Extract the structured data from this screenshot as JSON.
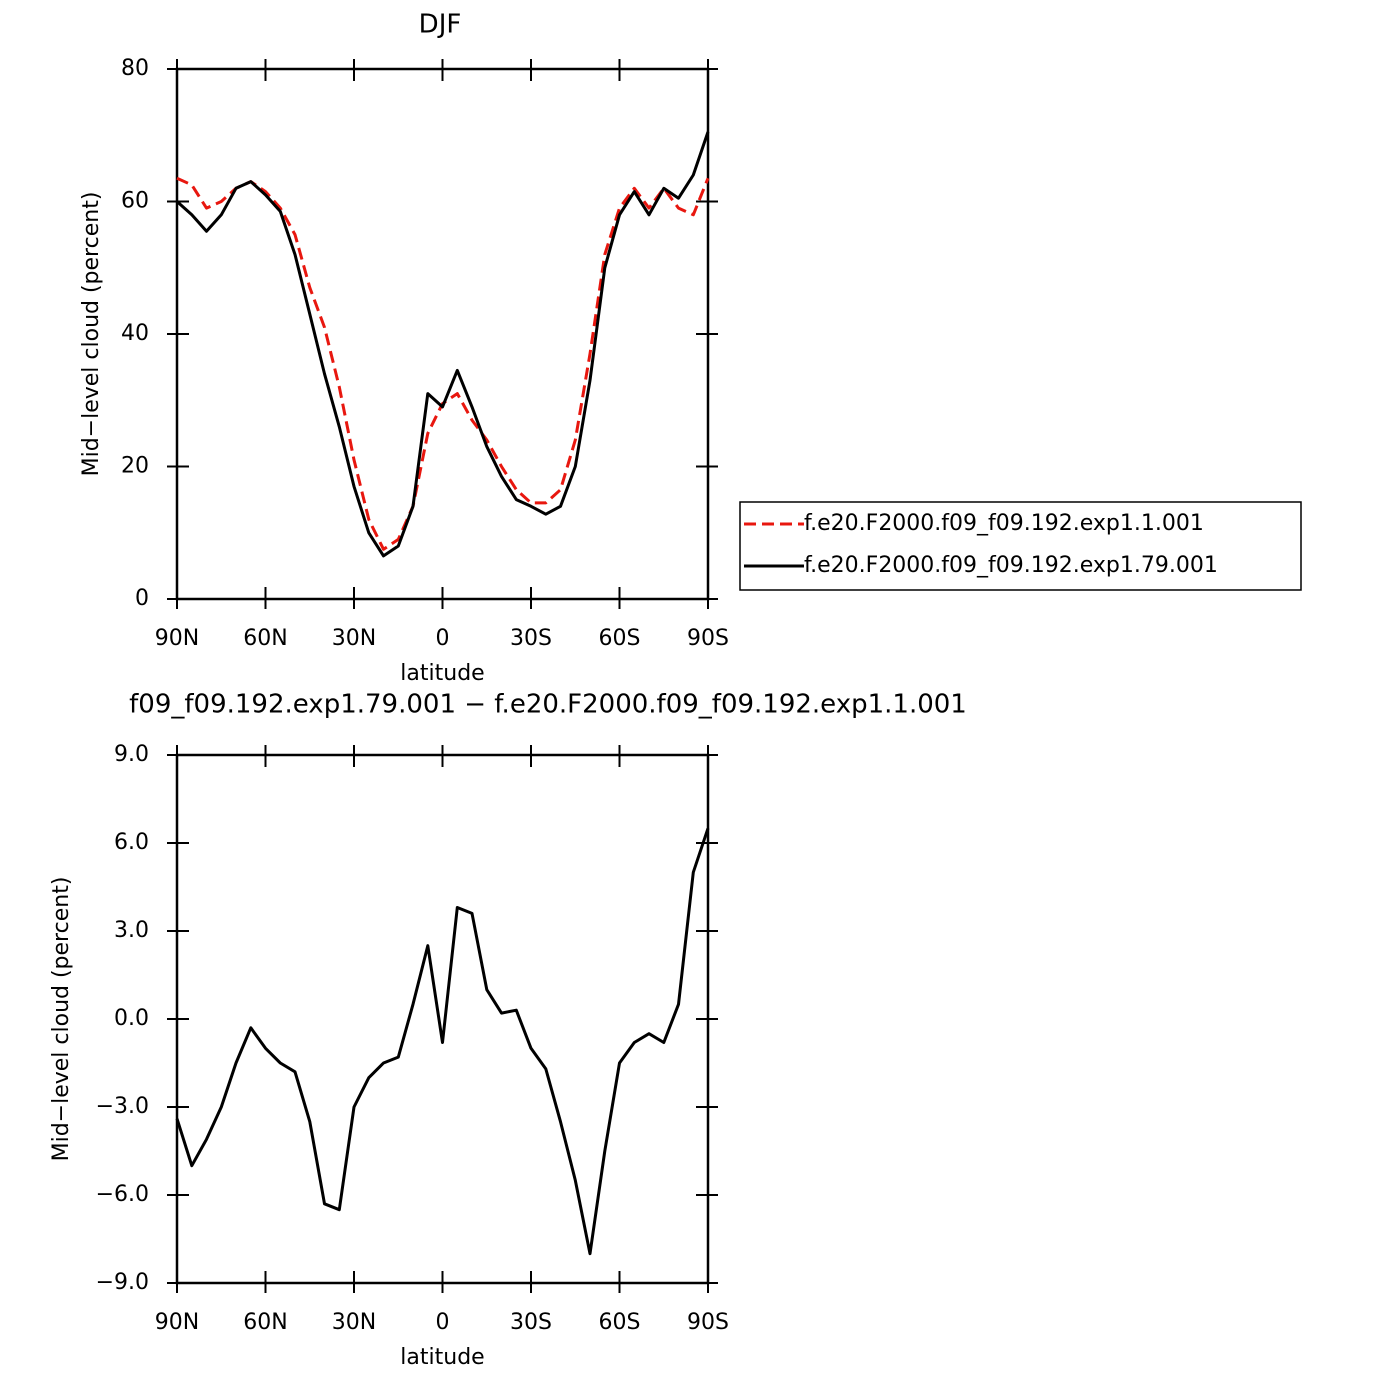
{
  "chart_data": [
    {
      "type": "line",
      "title": "DJF",
      "x_label": "latitude",
      "y_label": "Mid−level cloud (percent)",
      "x": [
        90,
        85,
        80,
        75,
        70,
        65,
        60,
        55,
        50,
        45,
        40,
        35,
        30,
        25,
        20,
        15,
        10,
        5,
        0,
        -5,
        -10,
        -15,
        -20,
        -25,
        -30,
        -35,
        -40,
        -45,
        -50,
        -55,
        -60,
        -65,
        -70,
        -75,
        -80,
        -85,
        -90
      ],
      "series": [
        {
          "name": "f.e20.F2000.f09_f09.192.exp1.1.001",
          "color": "#e8170f",
          "line_style": "dashed",
          "values": [
            63.5,
            62.5,
            59,
            60,
            62,
            63,
            61.5,
            59,
            55,
            47,
            41,
            32,
            21,
            12,
            7.5,
            9,
            14,
            25,
            29.5,
            31,
            27,
            24,
            20,
            16.5,
            14.5,
            14.5,
            16.5,
            24,
            37,
            52,
            59,
            62,
            59,
            62,
            59,
            58,
            63.5
          ]
        },
        {
          "name": "f.e20.F2000.f09_f09.192.exp1.79.001",
          "color": "#000000",
          "line_style": "solid",
          "values": [
            60,
            58,
            55.5,
            58,
            62,
            63,
            61,
            58.5,
            52,
            43,
            34,
            26,
            17,
            10,
            6.5,
            8,
            14,
            31,
            29,
            34.5,
            29,
            23,
            18.5,
            15,
            14,
            12.8,
            14,
            20,
            33,
            50,
            58,
            61.5,
            58,
            62,
            60.5,
            64,
            70.5
          ]
        }
      ],
      "xlim": [
        90,
        -90
      ],
      "xticks": [
        {
          "value": 90,
          "label": "90N"
        },
        {
          "value": 60,
          "label": "60N"
        },
        {
          "value": 30,
          "label": "30N"
        },
        0,
        {
          "value": -30,
          "label": "30S"
        },
        {
          "value": -60,
          "label": "60S"
        },
        {
          "value": -90,
          "label": "90S"
        }
      ],
      "ylim": [
        0,
        80
      ],
      "yticks": [
        0,
        20,
        40,
        60,
        80
      ],
      "legend": "right"
    },
    {
      "type": "line",
      "title": "f09_f09.192.exp1.79.001 − f.e20.F2000.f09_f09.192.exp1.1.001",
      "x_label": "latitude",
      "y_label": "Mid−level cloud (percent)",
      "x": [
        90,
        85,
        80,
        75,
        70,
        65,
        60,
        55,
        50,
        45,
        40,
        35,
        30,
        25,
        20,
        15,
        10,
        5,
        0,
        -5,
        -10,
        -15,
        -20,
        -25,
        -30,
        -35,
        -40,
        -45,
        -50,
        -55,
        -60,
        -65,
        -70,
        -75,
        -80,
        -85,
        -90
      ],
      "color": "#000000",
      "values": [
        -3.4,
        -5,
        -4.1,
        -3,
        -1.5,
        -0.3,
        -1,
        -1.5,
        -1.8,
        -3.5,
        -6.3,
        -6.5,
        -3,
        -2,
        -1.5,
        -1.3,
        0.5,
        2.5,
        -0.8,
        3.8,
        3.6,
        1,
        0.2,
        0.3,
        -1,
        -1.7,
        -3.5,
        -5.5,
        -8,
        -4.5,
        -1.5,
        -0.8,
        -0.5,
        -0.8,
        0.5,
        5,
        6.5
      ],
      "xlim": [
        90,
        -90
      ],
      "xticks": [
        {
          "value": 90,
          "label": "90N"
        },
        {
          "value": 60,
          "label": "60N"
        },
        {
          "value": 30,
          "label": "30N"
        },
        0,
        {
          "value": -30,
          "label": "30S"
        },
        {
          "value": -60,
          "label": "60S"
        },
        {
          "value": -90,
          "label": "90S"
        }
      ],
      "ylim": [
        -9,
        9
      ],
      "yticks": [
        {
          "value": -9,
          "label": "−9.0"
        },
        {
          "value": -6,
          "label": "−6.0"
        },
        {
          "value": -3,
          "label": "−3.0"
        },
        {
          "value": 0,
          "label": "0.0"
        },
        {
          "value": 3,
          "label": "3.0"
        },
        {
          "value": 6,
          "label": "6.0"
        },
        {
          "value": 9,
          "label": "9.0"
        }
      ]
    }
  ]
}
